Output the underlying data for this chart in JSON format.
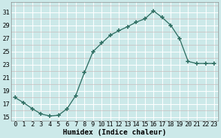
{
  "x": [
    0,
    1,
    2,
    3,
    4,
    5,
    6,
    7,
    8,
    9,
    10,
    11,
    12,
    13,
    14,
    15,
    16,
    17,
    18,
    19,
    20,
    21,
    22,
    23
  ],
  "y": [
    18,
    17.2,
    16.3,
    15.5,
    15.2,
    15.3,
    16.3,
    18.3,
    21.8,
    25.0,
    26.3,
    27.5,
    28.2,
    28.8,
    29.5,
    30.0,
    31.2,
    30.2,
    29.0,
    27.0,
    23.5,
    23.2,
    23.2,
    23.2
  ],
  "line_color": "#2e6e62",
  "marker": "+",
  "marker_size": 5,
  "bg_color": "#cce9e9",
  "grid_major_color": "#ffffff",
  "grid_minor_color": "#c8b8b8",
  "xlabel": "Humidex (Indice chaleur)",
  "ylabel": "",
  "xlim": [
    -0.5,
    23.5
  ],
  "ylim": [
    14.5,
    32.5
  ],
  "yticks": [
    15,
    17,
    19,
    21,
    23,
    25,
    27,
    29,
    31
  ],
  "xticks": [
    0,
    1,
    2,
    3,
    4,
    5,
    6,
    7,
    8,
    9,
    10,
    11,
    12,
    13,
    14,
    15,
    16,
    17,
    18,
    19,
    20,
    21,
    22,
    23
  ],
  "tick_label_fontsize": 6.5,
  "xlabel_fontsize": 7.5,
  "title_fontsize": 7
}
